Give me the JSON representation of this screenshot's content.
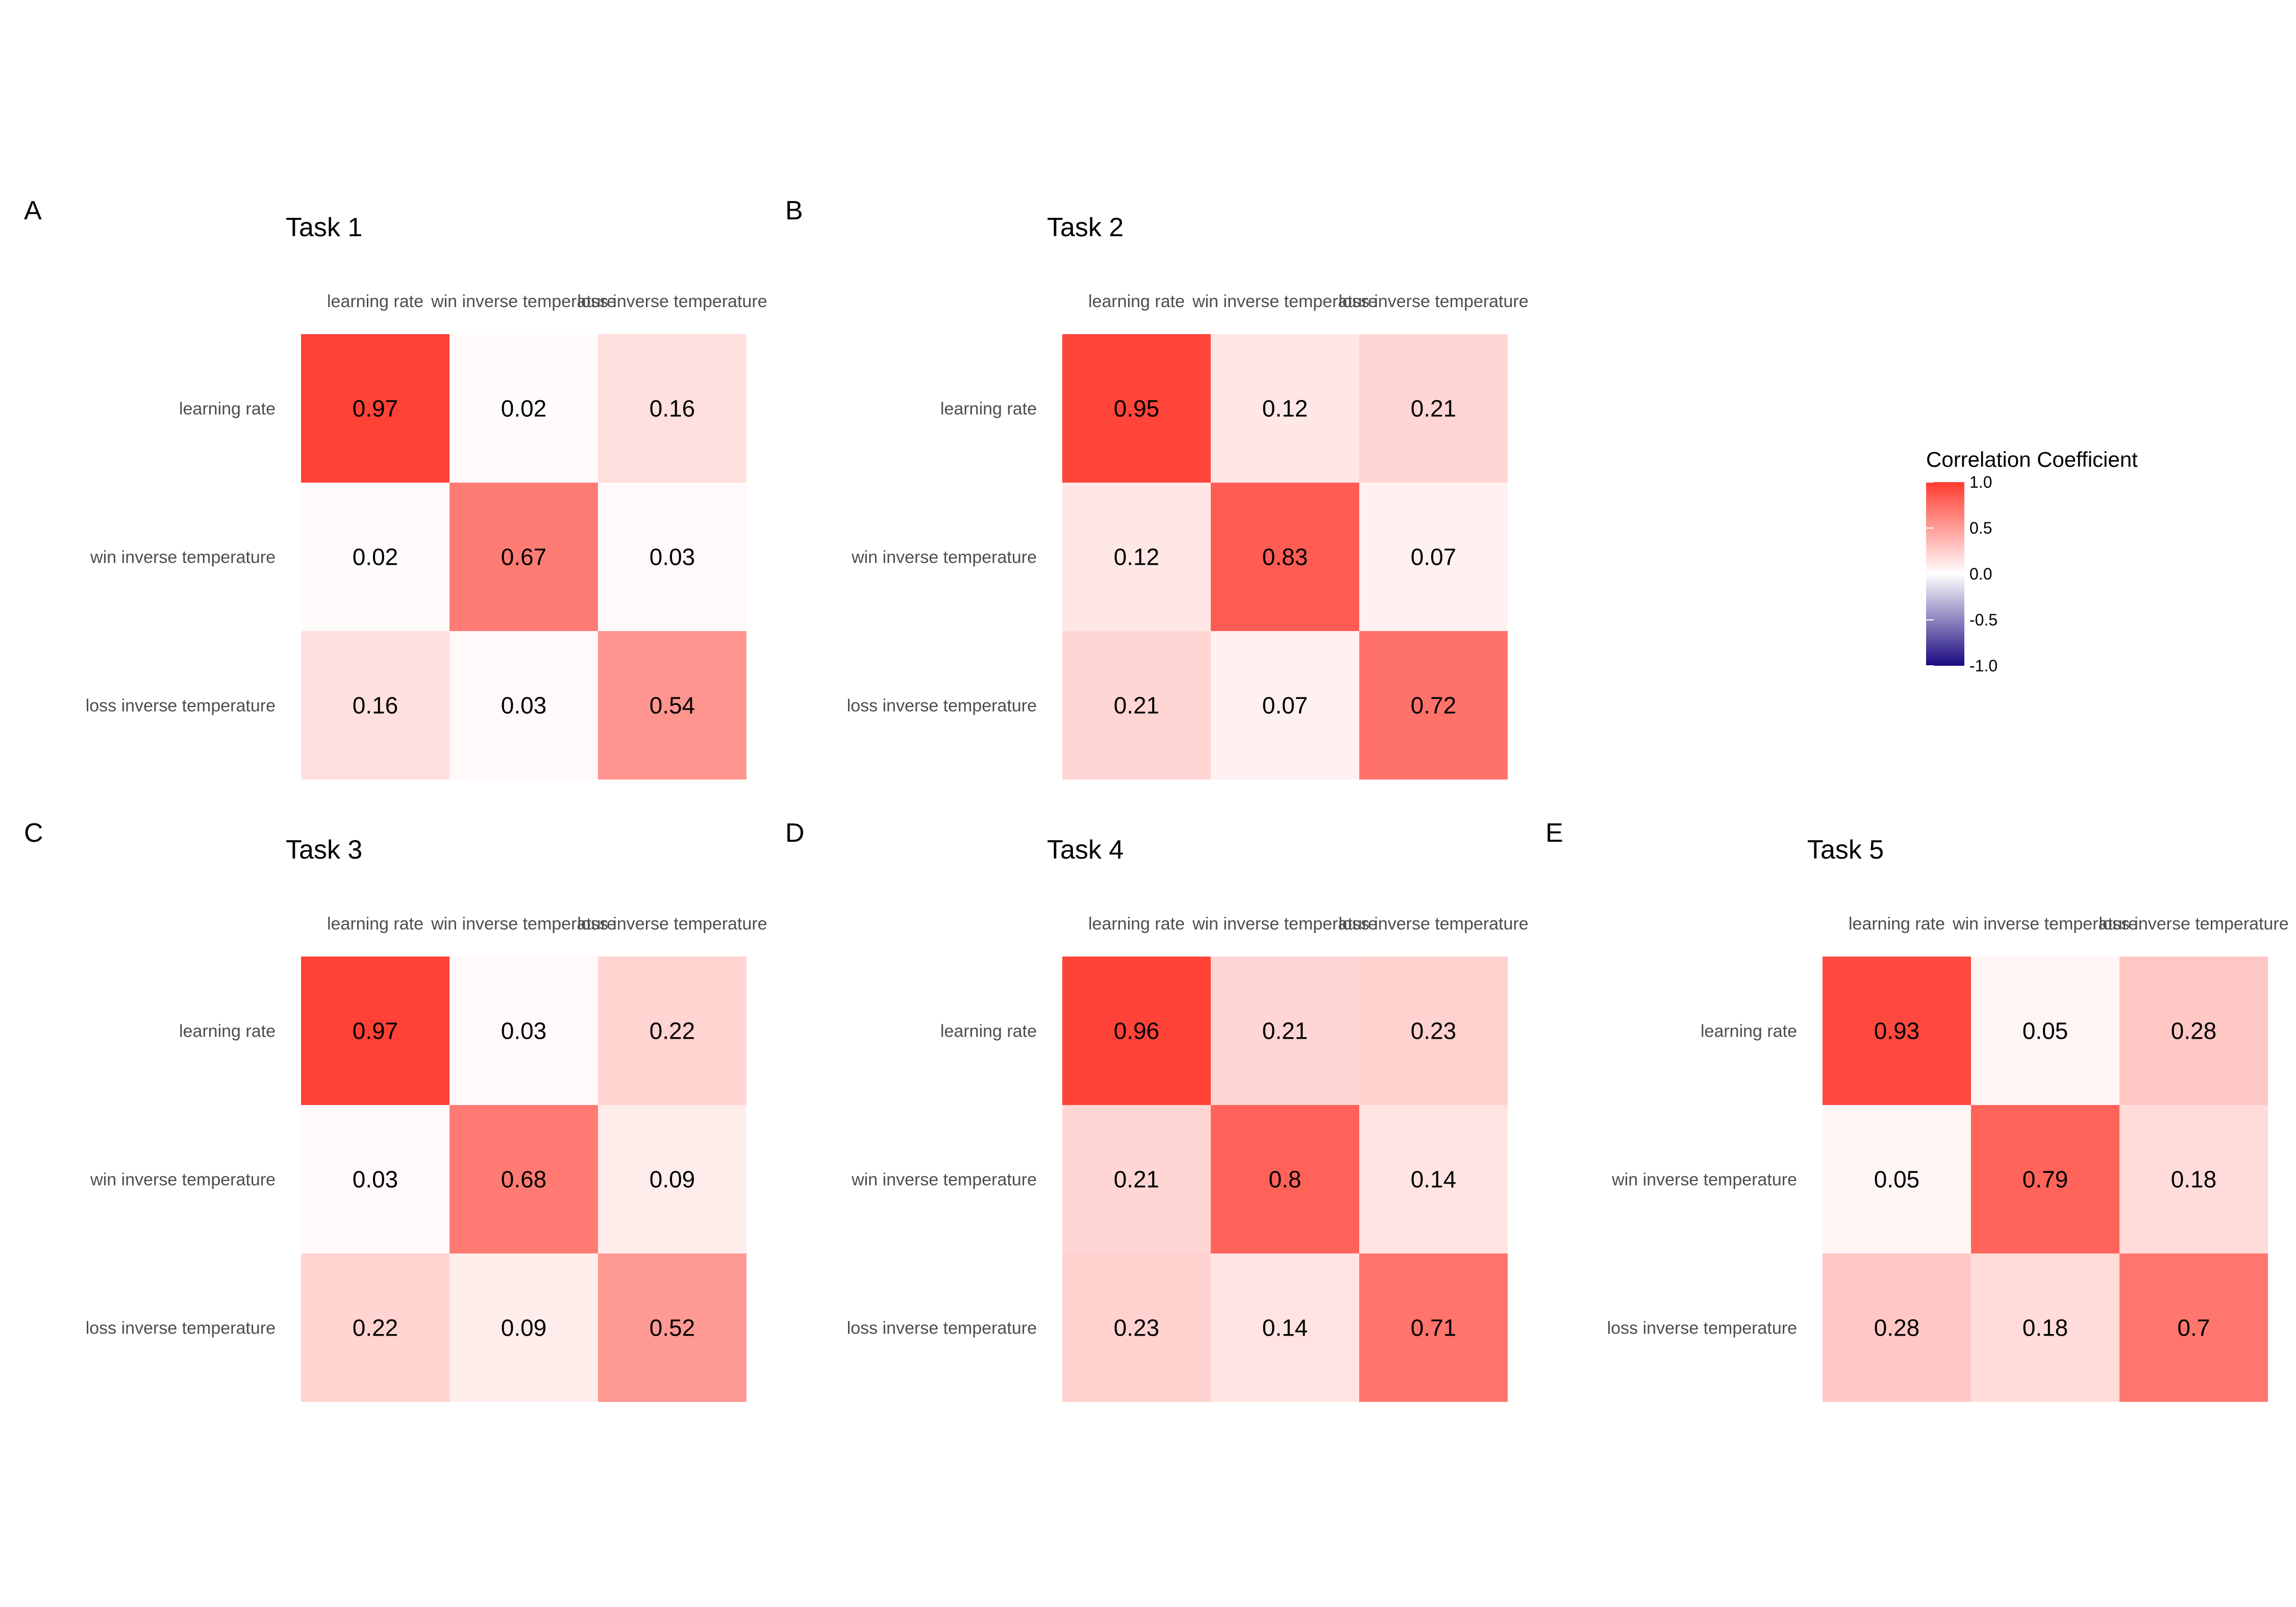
{
  "chart_data": [
    {
      "type": "heatmap",
      "panel": "A",
      "title": "Task 1",
      "x_labels": [
        "learning rate",
        "win inverse temperature",
        "loss inverse temperature"
      ],
      "y_labels": [
        "learning rate",
        "win inverse temperature",
        "loss inverse temperature"
      ],
      "values": [
        [
          0.97,
          0.02,
          0.16
        ],
        [
          0.02,
          0.67,
          0.03
        ],
        [
          0.16,
          0.03,
          0.54
        ]
      ]
    },
    {
      "type": "heatmap",
      "panel": "B",
      "title": "Task 2",
      "x_labels": [
        "learning rate",
        "win inverse temperature",
        "loss inverse temperature"
      ],
      "y_labels": [
        "learning rate",
        "win inverse temperature",
        "loss inverse temperature"
      ],
      "values": [
        [
          0.95,
          0.12,
          0.21
        ],
        [
          0.12,
          0.83,
          0.07
        ],
        [
          0.21,
          0.07,
          0.72
        ]
      ]
    },
    {
      "type": "heatmap",
      "panel": "C",
      "title": "Task 3",
      "x_labels": [
        "learning rate",
        "win inverse temperature",
        "loss inverse temperature"
      ],
      "y_labels": [
        "learning rate",
        "win inverse temperature",
        "loss inverse temperature"
      ],
      "values": [
        [
          0.97,
          0.03,
          0.22
        ],
        [
          0.03,
          0.68,
          0.09
        ],
        [
          0.22,
          0.09,
          0.52
        ]
      ]
    },
    {
      "type": "heatmap",
      "panel": "D",
      "title": "Task 4",
      "x_labels": [
        "learning rate",
        "win inverse temperature",
        "loss inverse temperature"
      ],
      "y_labels": [
        "learning rate",
        "win inverse temperature",
        "loss inverse temperature"
      ],
      "values": [
        [
          0.96,
          0.21,
          0.23
        ],
        [
          0.21,
          0.8,
          0.14
        ],
        [
          0.23,
          0.14,
          0.71
        ]
      ]
    },
    {
      "type": "heatmap",
      "panel": "E",
      "title": "Task 5",
      "x_labels": [
        "learning rate",
        "win inverse temperature",
        "loss inverse temperature"
      ],
      "y_labels": [
        "learning rate",
        "win inverse temperature",
        "loss inverse temperature"
      ],
      "values": [
        [
          0.93,
          0.05,
          0.28
        ],
        [
          0.05,
          0.79,
          0.18
        ],
        [
          0.28,
          0.18,
          0.7
        ]
      ]
    }
  ],
  "legend": {
    "title": "Correlation Coefficient",
    "range": [
      -1.0,
      1.0
    ],
    "ticks": [
      "1.0",
      "0.5",
      "0.0",
      "-0.5",
      "-1.0"
    ],
    "colors": {
      "high": "#ff3b30",
      "mid": "#ffffff",
      "low": "#1a0a80"
    }
  }
}
